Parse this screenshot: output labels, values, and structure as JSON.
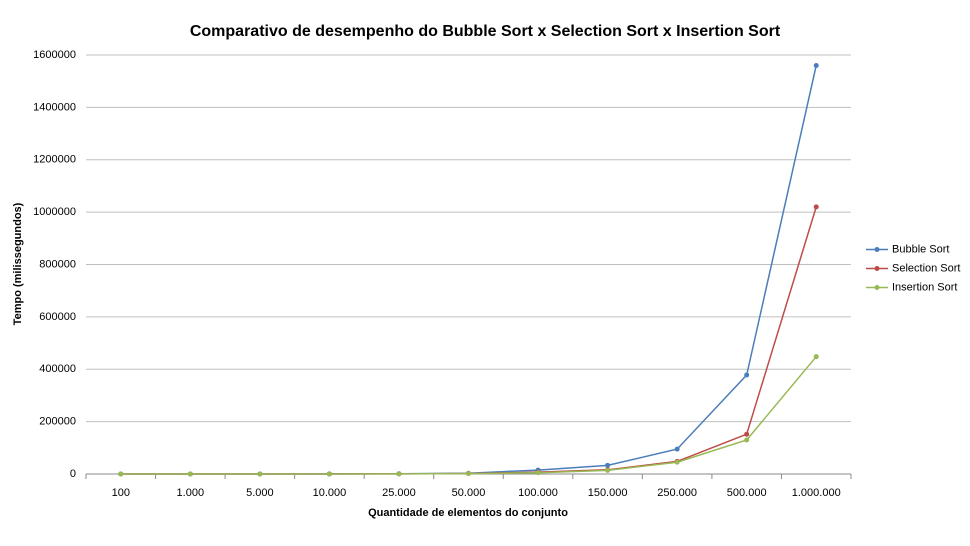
{
  "chart_data": {
    "type": "line",
    "title": "Comparativo de desempenho do Bubble Sort x Selection Sort x Insertion Sort",
    "x_label": "Quantidade de elementos do conjunto",
    "y_label": "Tempo (milissegundos)",
    "categories": [
      "100",
      "1.000",
      "5.000",
      "10.000",
      "25.000",
      "50.000",
      "100.000",
      "150.000",
      "250.000",
      "500.000",
      "1.000.000"
    ],
    "series": [
      {
        "name": "Bubble Sort",
        "color": "#4a7ebb",
        "values": [
          0,
          0,
          100,
          300,
          1000,
          3000,
          15000,
          33000,
          95000,
          378000,
          1560000
        ]
      },
      {
        "name": "Selection Sort",
        "color": "#be4b48",
        "values": [
          0,
          0,
          50,
          200,
          600,
          2000,
          7000,
          16000,
          48000,
          152000,
          1020000
        ]
      },
      {
        "name": "Insertion Sort",
        "color": "#98b954",
        "values": [
          0,
          0,
          50,
          150,
          500,
          1500,
          5000,
          14000,
          45000,
          130000,
          448000
        ]
      }
    ],
    "ylim": [
      0,
      1600000
    ],
    "yticks": [
      0,
      200000,
      400000,
      600000,
      800000,
      1000000,
      1200000,
      1400000,
      1600000
    ],
    "grid": true,
    "legend": "right"
  }
}
